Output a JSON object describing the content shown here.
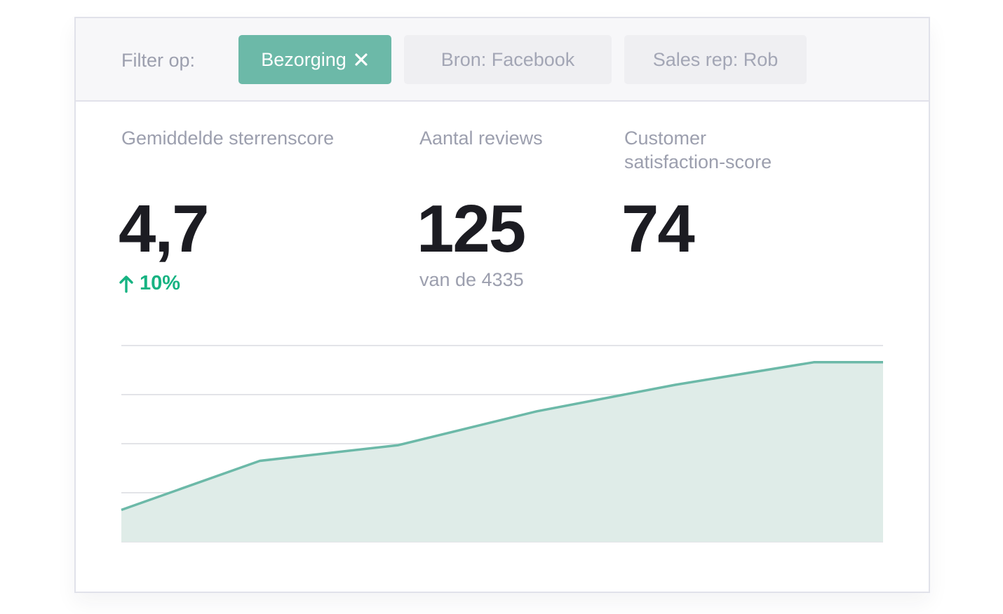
{
  "filter": {
    "label": "Filter op:",
    "chips": [
      {
        "label": "Bezorging",
        "active": true
      },
      {
        "label": "Bron: Facebook",
        "active": false
      },
      {
        "label": "Sales rep: Rob",
        "active": false
      }
    ]
  },
  "metrics": {
    "rating": {
      "title": "Gemiddelde sterrenscore",
      "value": "4,7",
      "trend": "10%",
      "trend_direction": "up"
    },
    "reviews": {
      "title": "Aantal reviews",
      "value": "125",
      "subtitle": "van de 4335"
    },
    "csat": {
      "title_line1": "Customer",
      "title_line2": "satisfaction-score",
      "value": "74"
    }
  },
  "colors": {
    "accent": "#6cb9a8",
    "area_fill": "#dfece8",
    "trend_up": "#17b382",
    "text_dark": "#1c1c22",
    "text_muted": "#9c9fae"
  },
  "chart_data": {
    "type": "area",
    "grid": true,
    "ylim": [
      0,
      4
    ],
    "x": [
      0,
      1,
      2,
      3,
      4,
      5,
      5.5
    ],
    "series": [
      {
        "values": [
          0.65,
          1.65,
          1.97,
          2.66,
          3.2,
          3.66,
          3.66
        ]
      }
    ]
  }
}
